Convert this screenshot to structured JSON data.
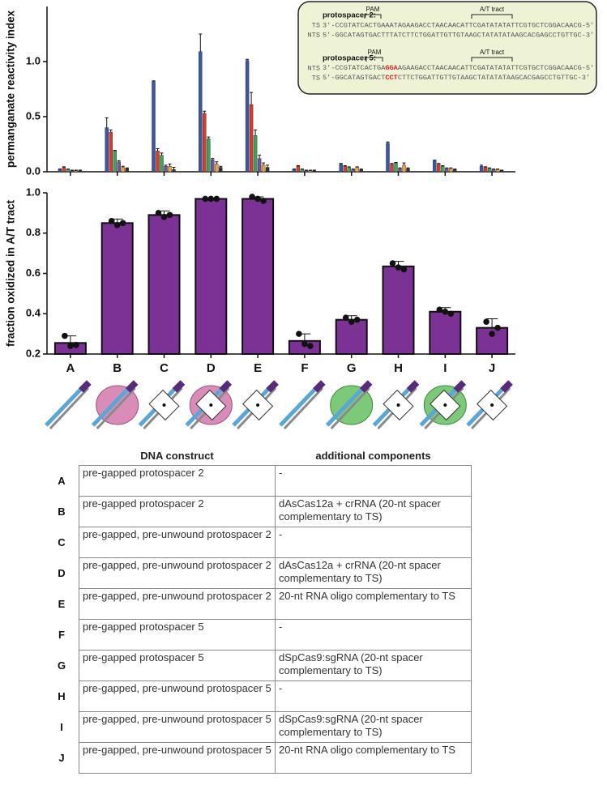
{
  "chart_data": [
    {
      "type": "bar",
      "ylabel": "permanganate reactivity index",
      "ylim": [
        0,
        1.5
      ],
      "yticks": [
        {
          "value": 0,
          "label": "0.0"
        },
        {
          "value": 0.5,
          "label": "0.5"
        },
        {
          "value": 1,
          "label": "1.0"
        }
      ],
      "series": [
        {
          "color": "#3a56a5",
          "values": [
            0.02,
            0.4,
            0.82,
            1.09,
            1.01,
            0.02,
            0.07,
            0.26,
            0.1,
            0.05
          ],
          "errors": [
            0.005,
            0.09,
            0.005,
            0.16,
            0.01,
            0.005,
            0.005,
            0.01,
            0.005,
            0.01
          ]
        },
        {
          "color": "#d93a2b",
          "values": [
            0.04,
            0.36,
            0.19,
            0.53,
            0.61,
            0.05,
            0.05,
            0.07,
            0.07,
            0.04
          ],
          "errors": [
            0.005,
            0.02,
            0.02,
            0.02,
            0.11,
            0.005,
            0.005,
            0.005,
            0.005,
            0.005
          ]
        },
        {
          "color": "#3aa55a",
          "values": [
            0.02,
            0.19,
            0.15,
            0.3,
            0.33,
            0.02,
            0.04,
            0.08,
            0.05,
            0.03
          ],
          "errors": [
            0.005,
            0.005,
            0.02,
            0.015,
            0.05,
            0.005,
            0.005,
            0.005,
            0.005,
            0.005
          ]
        },
        {
          "color": "#7b4fa0",
          "values": [
            0.01,
            0.09,
            0.05,
            0.11,
            0.12,
            0.01,
            0.02,
            0.03,
            0.03,
            0.02
          ],
          "errors": [
            0.005,
            0.01,
            0.01,
            0.01,
            0.03,
            0.005,
            0.005,
            0.005,
            0.005,
            0.005
          ]
        },
        {
          "color": "#e8a33a",
          "values": [
            0.01,
            0.04,
            0.05,
            0.07,
            0.06,
            0.01,
            0.04,
            0.06,
            0.03,
            0.02
          ],
          "errors": [
            0.005,
            0.01,
            0.02,
            0.02,
            0.02,
            0.005,
            0.005,
            0.02,
            0.005,
            0.005
          ]
        },
        {
          "color": "#333333",
          "values": [
            0.01,
            0.03,
            0.02,
            0.04,
            0.04,
            0.01,
            0.02,
            0.03,
            0.02,
            0.01
          ],
          "errors": [
            0.005,
            0.005,
            0.02,
            0.01,
            0.02,
            0.005,
            0.005,
            0.005,
            0.005,
            0.005
          ]
        }
      ]
    },
    {
      "type": "bar",
      "ylabel": "fraction oxidized in A/T tract",
      "color": "#7b3294",
      "ylim": [
        0.2,
        1.0
      ],
      "yticks": [
        0.2,
        0.4,
        0.6,
        0.8,
        {
          "value": 1,
          "label": "1.0"
        }
      ],
      "categories": [
        "A",
        "B",
        "C",
        "D",
        "E",
        "F",
        "G",
        "H",
        "I",
        "J"
      ],
      "values": [
        0.255,
        0.85,
        0.89,
        0.97,
        0.97,
        0.265,
        0.37,
        0.635,
        0.41,
        0.33
      ],
      "errors": [
        0.035,
        0.02,
        0.02,
        0.003,
        0.01,
        0.035,
        0.02,
        0.025,
        0.02,
        0.045
      ],
      "points": [
        [
          0.29,
          0.24,
          0.245
        ],
        [
          0.86,
          0.84,
          0.85
        ],
        [
          0.9,
          0.88,
          0.89
        ],
        [
          0.97,
          0.97,
          0.97
        ],
        [
          0.98,
          0.97,
          0.96
        ],
        [
          0.3,
          0.25,
          0.24
        ],
        [
          0.38,
          0.36,
          0.37
        ],
        [
          0.65,
          0.63,
          0.62
        ],
        [
          0.42,
          0.41,
          0.4
        ],
        [
          0.36,
          0.3,
          0.33
        ]
      ]
    }
  ],
  "inset": {
    "blocks": [
      {
        "title": "protospacer 2:",
        "pam": "PAM",
        "tract": "A/T tract",
        "rows": [
          {
            "strand": "TS",
            "parts": [
              "3′-CCGTATCACTGAAATAGAAGACCTAACAACATTCGATATATATTCGTGCTCGGACAACG-5′"
            ]
          },
          {
            "strand": "NTS",
            "parts": [
              "5′-GGCATAGTGACTTTATCTTCTGGATTGTTGTAAGCTATATATAAGCACGAGCCTGTTGC-3′"
            ]
          }
        ]
      },
      {
        "title": "protospacer 5:",
        "pam": "PAM",
        "tract": "A/T tract",
        "rows": [
          {
            "strand": "NTS",
            "parts": [
              "3′-CCGTATCACTGA",
              "GGA",
              "AGAAGACCTAACAACATTCGATATATATTCGTGCTCGGACAACG-5′"
            ]
          },
          {
            "strand": "TS",
            "parts": [
              "5′-GGCATAGTGACT",
              "CCT",
              "CTTCTGGATTGTTGTAAGCTATATATAAGCACGAGCCTGTTGC-3′"
            ]
          }
        ]
      }
    ]
  },
  "table": {
    "header": [
      "DNA construct",
      "additional components"
    ],
    "rows": [
      [
        "A",
        "pre-gapped protospacer 2",
        "-"
      ],
      [
        "B",
        "pre-gapped protospacer 2",
        "dAsCas12a + crRNA (20-nt spacer complementary to TS)"
      ],
      [
        "C",
        "pre-gapped, pre-unwound protospacer 2",
        "-"
      ],
      [
        "D",
        "pre-gapped, pre-unwound protospacer 2",
        "dAsCas12a + crRNA (20-nt spacer complementary to TS)"
      ],
      [
        "E",
        "pre-gapped, pre-unwound protospacer 2",
        "20-nt RNA oligo complementary to TS"
      ],
      [
        "F",
        "pre-gapped protospacer 5",
        "-"
      ],
      [
        "G",
        "pre-gapped protospacer 5",
        "dSpCas9:sgRNA (20-nt spacer complementary to TS)"
      ],
      [
        "H",
        "pre-gapped, pre-unwound protospacer 5",
        "-"
      ],
      [
        "I",
        "pre-gapped, pre-unwound protospacer 5",
        "dSpCas9:sgRNA (20-nt spacer complementary to TS)"
      ],
      [
        "J",
        "pre-gapped, pre-unwound protospacer 5",
        "20-nt RNA oligo complementary to TS"
      ]
    ]
  }
}
